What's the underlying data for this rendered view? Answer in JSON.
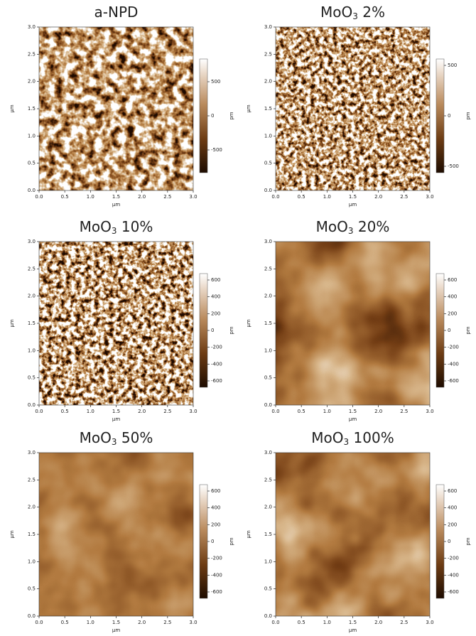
{
  "panels": [
    {
      "title": {
        "main": "a-NPD"
      },
      "xticks": [
        "0.0",
        "0.5",
        "1.0",
        "1.5",
        "2.0",
        "2.5",
        "3.0"
      ],
      "yticks": [
        "0.0",
        "0.5",
        "1.0",
        "1.5",
        "2.0",
        "2.5",
        "3.0"
      ],
      "xlabel": "μm",
      "ylabel": "μm",
      "colorbar_ticks": [
        "500",
        "0",
        "-500"
      ],
      "colorbar_unit": "pm"
    },
    {
      "title": {
        "main": "MoO",
        "sub": "3",
        "rest": " 2%"
      },
      "xticks": [
        "0.0",
        "0.5",
        "1.0",
        "1.5",
        "2.0",
        "2.5",
        "3.0"
      ],
      "yticks": [
        "0.0",
        "0.5",
        "1.0",
        "1.5",
        "2.0",
        "2.5",
        "3.0"
      ],
      "xlabel": "μm",
      "ylabel": "μm",
      "colorbar_ticks": [
        "500",
        "0",
        "-500"
      ],
      "colorbar_unit": "pm"
    },
    {
      "title": {
        "main": "MoO",
        "sub": "3",
        "rest": " 10%"
      },
      "xticks": [
        "0.0",
        "0.5",
        "1.0",
        "1.5",
        "2.0",
        "2.5",
        "3.0"
      ],
      "yticks": [
        "0.0",
        "0.5",
        "1.0",
        "1.5",
        "2.0",
        "2.5",
        "3.0"
      ],
      "xlabel": "μm",
      "ylabel": "μm",
      "colorbar_ticks": [
        "600",
        "400",
        "200",
        "0",
        "-200",
        "-400",
        "-600"
      ],
      "colorbar_unit": "pm"
    },
    {
      "title": {
        "main": "MoO",
        "sub": "3",
        "rest": " 20%"
      },
      "xticks": [
        "0.0",
        "0.5",
        "1.0",
        "1.5",
        "2.0",
        "2.5",
        "3.0"
      ],
      "yticks": [
        "0.0",
        "0.5",
        "1.0",
        "1.5",
        "2.0",
        "2.5",
        "3.0"
      ],
      "xlabel": "μm",
      "ylabel": "μm",
      "colorbar_ticks": [
        "600",
        "400",
        "200",
        "0",
        "-200",
        "-400",
        "-600"
      ],
      "colorbar_unit": "pm"
    },
    {
      "title": {
        "main": "MoO",
        "sub": "3",
        "rest": " 50%"
      },
      "xticks": [
        "0.0",
        "0.5",
        "1.0",
        "1.5",
        "2.0",
        "2.5",
        "3.0"
      ],
      "yticks": [
        "0.0",
        "0.5",
        "1.0",
        "1.5",
        "2.0",
        "2.5",
        "3.0"
      ],
      "xlabel": "μm",
      "ylabel": "μm",
      "colorbar_ticks": [
        "600",
        "400",
        "200",
        "0",
        "-200",
        "-400",
        "-600"
      ],
      "colorbar_unit": "pm"
    },
    {
      "title": {
        "main": "MoO",
        "sub": "3",
        "rest": " 100%"
      },
      "xticks": [
        "0.0",
        "0.5",
        "1.0",
        "1.5",
        "2.0",
        "2.5",
        "3.0"
      ],
      "yticks": [
        "0.0",
        "0.5",
        "1.0",
        "1.5",
        "2.0",
        "2.5",
        "3.0"
      ],
      "xlabel": "μm",
      "ylabel": "μm",
      "colorbar_ticks": [
        "600",
        "400",
        "200",
        "0",
        "-200",
        "-400",
        "-600"
      ],
      "colorbar_unit": "pm"
    }
  ]
}
